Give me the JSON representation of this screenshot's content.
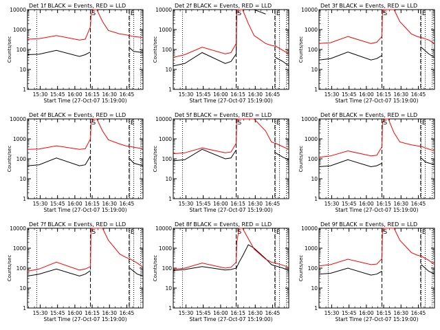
{
  "page": {
    "x_tick_labels": [
      "15:30",
      "15:45",
      "16:00",
      "16:15",
      "16:30",
      "16:45"
    ],
    "y_tick_labels": [
      "1",
      "10",
      "100",
      "1000",
      "10000"
    ],
    "ylabel": "Counts/sec",
    "xlabel": "Start Time (27-Oct-07 15:19:00)",
    "marker_S": "S",
    "marker_E": "E",
    "colors": {
      "events": "#000000",
      "lld": "#ff0000",
      "axes": "#000000"
    }
  },
  "chart_data": [
    {
      "type": "line",
      "title": "Det 1f BLACK = Events, RED = LLD",
      "xlabel": "Start Time (27-Oct-07 15:19:00)",
      "ylabel": "Counts/sec",
      "ylog": true,
      "xlim_min": [
        0,
        100
      ],
      "ylim": [
        1,
        10000
      ],
      "x_minutes": [
        0,
        10,
        25,
        45,
        50,
        54.5,
        55,
        57,
        60,
        65,
        70,
        80,
        85,
        88,
        88.5,
        92,
        100
      ],
      "series": [
        {
          "name": "Events",
          "values": [
            55,
            58,
            90,
            45,
            55,
            75,
            null,
            null,
            null,
            null,
            null,
            null,
            null,
            null,
            120,
            80,
            70
          ]
        },
        {
          "name": "LLD",
          "values": [
            330,
            350,
            500,
            300,
            330,
            1400,
            5500,
            10000,
            10000,
            2500,
            900,
            600,
            550,
            500,
            500,
            440,
            400
          ]
        }
      ]
    },
    {
      "type": "line",
      "title": "Det 2f BLACK = Events, RED = LLD",
      "xlabel": "Start Time (27-Oct-07 15:19:00)",
      "ylabel": "Counts/sec",
      "ylog": true,
      "xlim_min": [
        0,
        100
      ],
      "ylim": [
        1,
        10000
      ],
      "x_minutes": [
        0,
        10,
        25,
        45,
        50,
        54.5,
        55,
        58,
        60,
        65,
        70,
        80,
        85,
        88,
        88.5,
        95,
        100
      ],
      "series": [
        {
          "name": "Events",
          "values": [
            15,
            20,
            70,
            20,
            25,
            60,
            10000,
            10000,
            10000,
            10000,
            10000,
            6000,
            null,
            null,
            40,
            25,
            15
          ]
        },
        {
          "name": "LLD",
          "values": [
            40,
            55,
            130,
            60,
            70,
            200,
            10000,
            10000,
            10000,
            2000,
            500,
            200,
            160,
            150,
            150,
            90,
            60
          ]
        }
      ]
    },
    {
      "type": "line",
      "title": "Det 3f BLACK = Events, RED = LLD",
      "xlabel": "Start Time (27-Oct-07 15:19:00)",
      "ylabel": "Counts/sec",
      "ylog": true,
      "xlim_min": [
        0,
        100
      ],
      "ylim": [
        1,
        10000
      ],
      "x_minutes": [
        0,
        10,
        25,
        45,
        50,
        54.5,
        55,
        58,
        60,
        65,
        70,
        80,
        85,
        88,
        88.5,
        95,
        100
      ],
      "series": [
        {
          "name": "Events",
          "values": [
            30,
            35,
            75,
            30,
            35,
            50,
            null,
            null,
            null,
            null,
            null,
            null,
            null,
            null,
            130,
            60,
            40
          ]
        },
        {
          "name": "LLD",
          "values": [
            200,
            220,
            450,
            200,
            230,
            450,
            10000,
            10000,
            10000,
            10000,
            2500,
            600,
            450,
            400,
            400,
            300,
            200
          ]
        }
      ]
    },
    {
      "type": "line",
      "title": "Det 4f BLACK = Events, RED = LLD",
      "xlabel": "Start Time (27-Oct-07 15:19:00)",
      "ylabel": "Counts/sec",
      "ylog": true,
      "xlim_min": [
        0,
        100
      ],
      "ylim": [
        1,
        10000
      ],
      "x_minutes": [
        0,
        10,
        25,
        45,
        50,
        54.5,
        55,
        57,
        60,
        65,
        70,
        80,
        85,
        88,
        88.5,
        92,
        100
      ],
      "series": [
        {
          "name": "Events",
          "values": [
            45,
            50,
            110,
            45,
            50,
            140,
            null,
            null,
            null,
            null,
            null,
            null,
            null,
            null,
            100,
            60,
            45
          ]
        },
        {
          "name": "LLD",
          "values": [
            300,
            310,
            450,
            300,
            320,
            1000,
            6000,
            10000,
            10000,
            2500,
            900,
            550,
            450,
            420,
            420,
            380,
            320
          ]
        }
      ]
    },
    {
      "type": "line",
      "title": "Det 5f BLACK = Events, RED = LLD",
      "xlabel": "Start Time (27-Oct-07 15:19:00)",
      "ylabel": "Counts/sec",
      "ylog": true,
      "xlim_min": [
        0,
        100
      ],
      "ylim": [
        1,
        10000
      ],
      "x_minutes": [
        0,
        10,
        25,
        45,
        50,
        54.5,
        55,
        58,
        60,
        65,
        70,
        80,
        85,
        88,
        88.5,
        95,
        100
      ],
      "series": [
        {
          "name": "Events",
          "values": [
            80,
            90,
            300,
            100,
            110,
            280,
            null,
            null,
            null,
            null,
            null,
            null,
            null,
            null,
            200,
            120,
            90
          ]
        },
        {
          "name": "LLD",
          "values": [
            180,
            200,
            350,
            200,
            220,
            600,
            10000,
            10000,
            10000,
            10000,
            10000,
            2500,
            700,
            600,
            600,
            400,
            300
          ]
        }
      ]
    },
    {
      "type": "line",
      "title": "Det 6f BLACK = Events, RED = LLD",
      "xlabel": "Start Time (27-Oct-07 15:19:00)",
      "ylabel": "Counts/sec",
      "ylog": true,
      "xlim_min": [
        0,
        100
      ],
      "ylim": [
        1,
        10000
      ],
      "x_minutes": [
        0,
        10,
        25,
        45,
        50,
        54.5,
        55,
        57,
        60,
        65,
        70,
        80,
        85,
        88,
        88.5,
        92,
        100
      ],
      "series": [
        {
          "name": "Events",
          "values": [
            40,
            45,
            90,
            40,
            45,
            60,
            null,
            null,
            null,
            null,
            null,
            null,
            null,
            null,
            110,
            70,
            50
          ]
        },
        {
          "name": "LLD",
          "values": [
            120,
            140,
            250,
            140,
            150,
            400,
            7000,
            10000,
            10000,
            2000,
            700,
            500,
            450,
            420,
            420,
            350,
            250
          ]
        }
      ]
    },
    {
      "type": "line",
      "title": "Det 7f BLACK = Events, RED = LLD",
      "xlabel": "Start Time (27-Oct-07 15:19:00)",
      "ylabel": "Counts/sec",
      "ylog": true,
      "xlim_min": [
        0,
        100
      ],
      "ylim": [
        1,
        10000
      ],
      "x_minutes": [
        0,
        10,
        25,
        45,
        50,
        54.5,
        55,
        58,
        60,
        65,
        70,
        80,
        85,
        88,
        88.5,
        95,
        100
      ],
      "series": [
        {
          "name": "Events",
          "values": [
            40,
            50,
            90,
            40,
            50,
            75,
            null,
            null,
            null,
            null,
            null,
            null,
            null,
            null,
            100,
            50,
            40
          ]
        },
        {
          "name": "LLD",
          "values": [
            70,
            90,
            200,
            80,
            90,
            120,
            10000,
            10000,
            10000,
            10000,
            2500,
            500,
            350,
            300,
            300,
            180,
            110
          ]
        }
      ]
    },
    {
      "type": "line",
      "title": "Det 8f BLACK = Events, RED = LLD",
      "xlabel": "Start Time (27-Oct-07 15:19:00)",
      "ylabel": "Counts/sec",
      "ylog": true,
      "xlim_min": [
        0,
        100
      ],
      "ylim": [
        1,
        10000
      ],
      "x_minutes": [
        0,
        10,
        25,
        45,
        50,
        54.5,
        55,
        57,
        60,
        65,
        70,
        80,
        85,
        88,
        88.5,
        95,
        100
      ],
      "series": [
        {
          "name": "Events",
          "values": [
            75,
            85,
            120,
            80,
            85,
            100,
            110,
            200,
            400,
            1500,
            1000,
            300,
            150,
            130,
            130,
            100,
            75
          ]
        },
        {
          "name": "LLD",
          "values": [
            85,
            100,
            180,
            100,
            110,
            200,
            2000,
            10000,
            10000,
            3000,
            900,
            280,
            200,
            180,
            180,
            140,
            110
          ]
        }
      ]
    },
    {
      "type": "line",
      "title": "Det 9f BLACK = Events, RED = LLD",
      "xlabel": "Start Time (27-Oct-07 15:19:00)",
      "ylabel": "Counts/sec",
      "ylog": true,
      "xlim_min": [
        0,
        100
      ],
      "ylim": [
        1,
        10000
      ],
      "x_minutes": [
        0,
        10,
        25,
        45,
        50,
        54.5,
        55,
        58,
        60,
        65,
        70,
        80,
        85,
        88,
        88.5,
        95,
        100
      ],
      "series": [
        {
          "name": "Events",
          "values": [
            50,
            55,
            100,
            45,
            50,
            70,
            null,
            null,
            null,
            null,
            null,
            null,
            null,
            null,
            150,
            70,
            50
          ]
        },
        {
          "name": "LLD",
          "values": [
            130,
            150,
            280,
            150,
            160,
            300,
            10000,
            10000,
            10000,
            10000,
            2500,
            600,
            450,
            400,
            400,
            250,
            150
          ]
        }
      ]
    }
  ]
}
